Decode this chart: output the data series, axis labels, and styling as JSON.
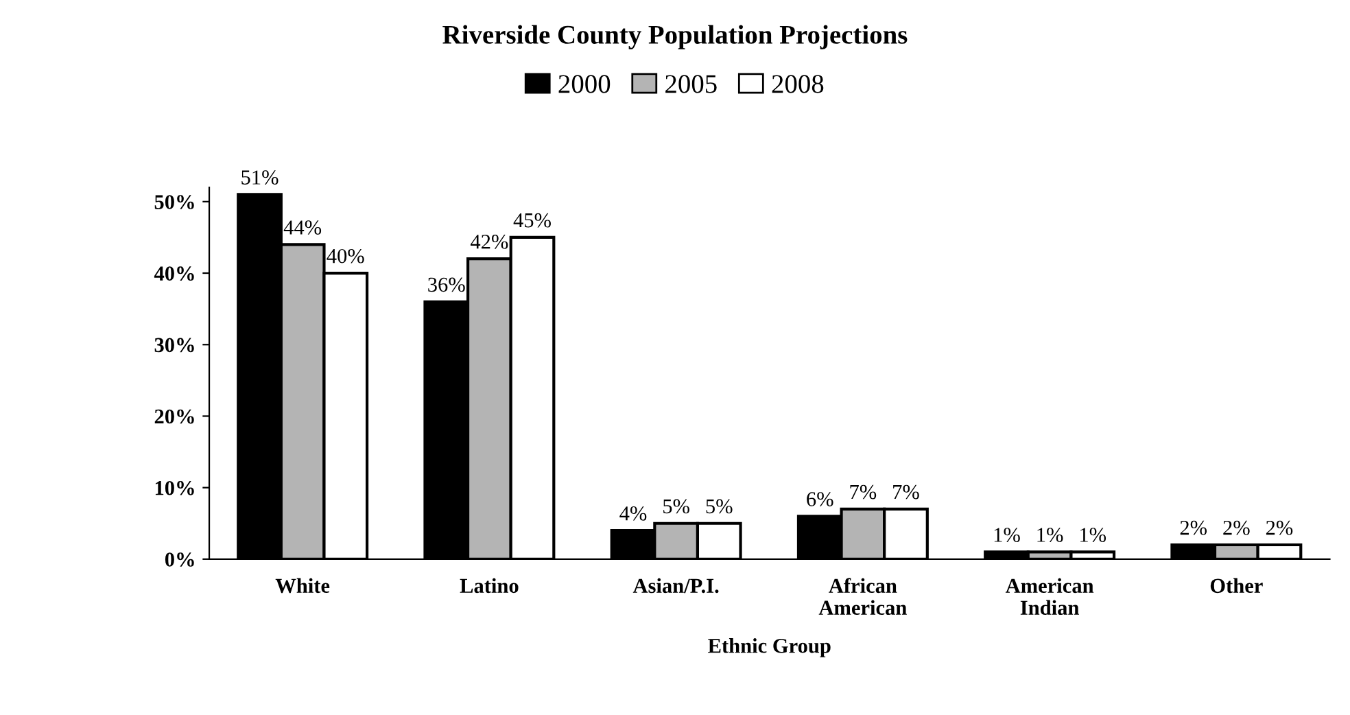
{
  "chart_data": {
    "type": "bar",
    "title": "Riverside County Population Projections",
    "xlabel": "Ethnic Group",
    "categories": [
      "White",
      "Latino",
      "Asian/P.I.",
      "African\nAmerican",
      "American\nIndian",
      "Other"
    ],
    "series": [
      {
        "name": "2000",
        "color": "#000000",
        "values": [
          51,
          36,
          4,
          6,
          1,
          2
        ],
        "value_labels": [
          "51%",
          "36%",
          "4%",
          "6%",
          "1%",
          "2%"
        ]
      },
      {
        "name": "2005",
        "color": "#b4b4b4",
        "values": [
          44,
          42,
          5,
          7,
          1,
          2
        ],
        "value_labels": [
          "44%",
          "42%",
          "5%",
          "7%",
          "1%",
          "2%"
        ]
      },
      {
        "name": "2008",
        "color": "#ffffff",
        "values": [
          40,
          45,
          5,
          7,
          1,
          2
        ],
        "value_labels": [
          "40%",
          "45%",
          "5%",
          "7%",
          "1%",
          "2%"
        ]
      }
    ],
    "ylim": [
      0,
      52
    ],
    "yticks": [
      {
        "value": 0,
        "label": "0%"
      },
      {
        "value": 10,
        "label": "10%"
      },
      {
        "value": 20,
        "label": "20%"
      },
      {
        "value": 30,
        "label": "30%"
      },
      {
        "value": 40,
        "label": "40%"
      },
      {
        "value": 50,
        "label": "50%"
      }
    ],
    "grid": false,
    "legend": "top"
  }
}
